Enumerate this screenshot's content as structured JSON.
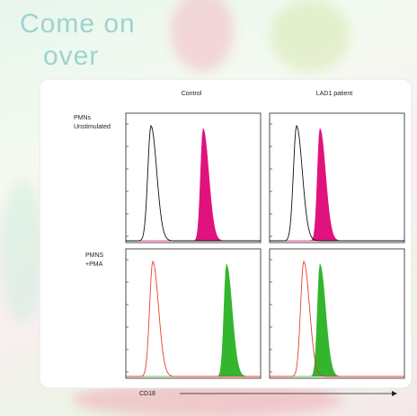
{
  "background": {
    "title_lines": [
      "Come on",
      "over"
    ]
  },
  "figure": {
    "columns": [
      "Control",
      "LAD1 patient"
    ],
    "rows": [
      [
        "PMNs",
        "Unstimulated"
      ],
      [
        "PMNS",
        "+PMA"
      ]
    ],
    "x_axis_label": "CD18"
  }
}
